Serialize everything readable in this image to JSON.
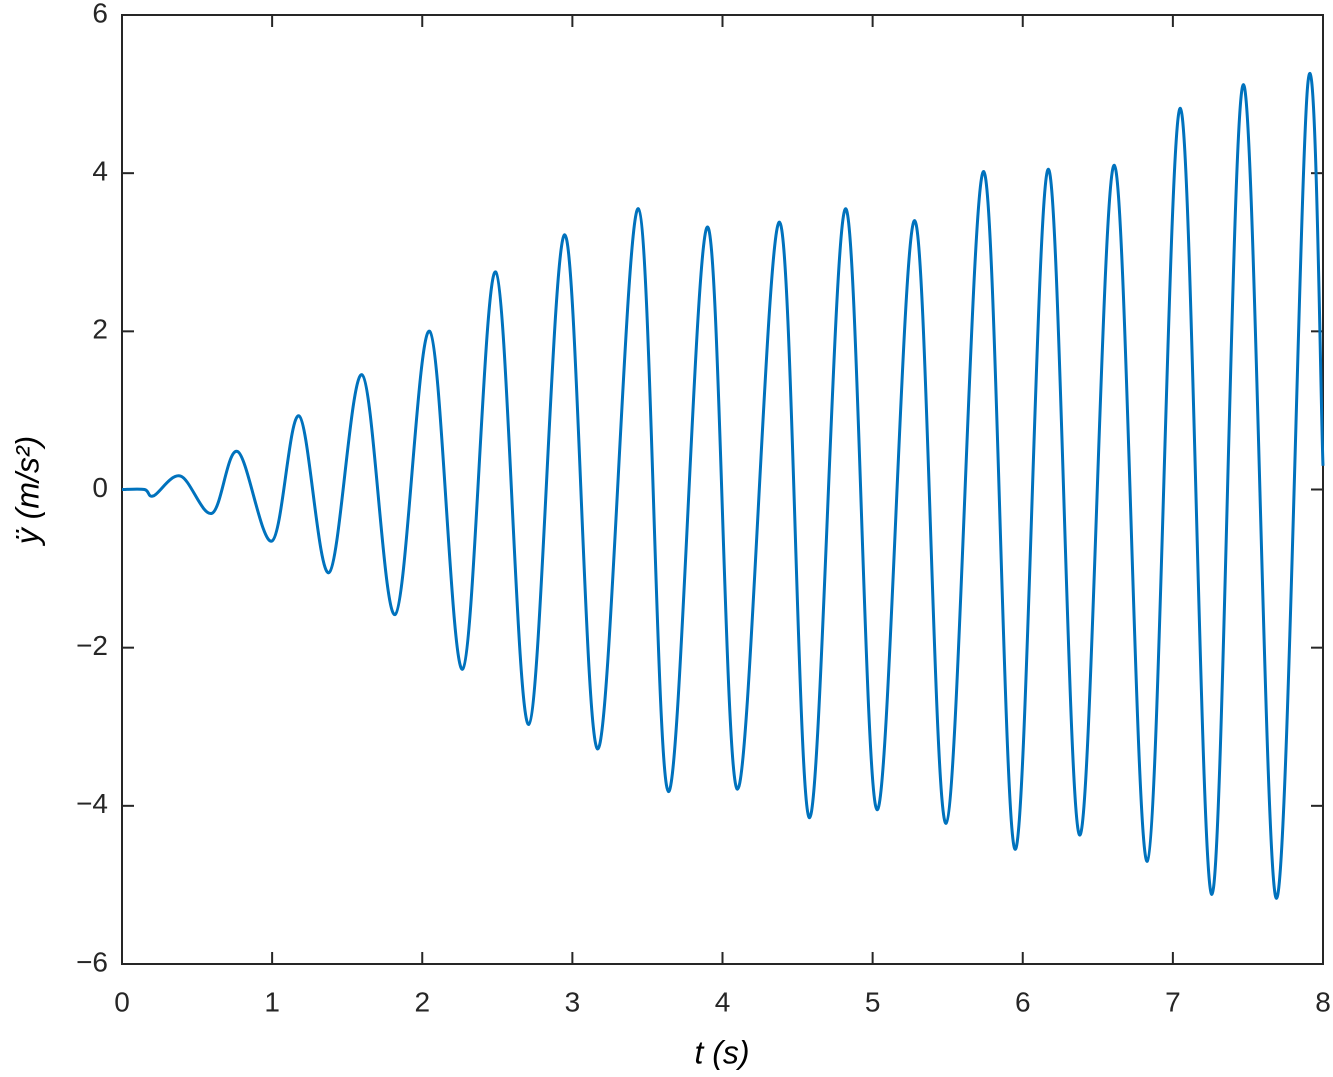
{
  "chart_data": {
    "type": "line",
    "xlabel": "t (s)",
    "ylabel": "ÿ (m/s²)",
    "xlim": [
      0,
      8
    ],
    "ylim": [
      -6,
      6
    ],
    "xticks": [
      0,
      1,
      2,
      3,
      4,
      5,
      6,
      7,
      8
    ],
    "yticks": [
      {
        "value": -6,
        "label": "−6"
      },
      {
        "value": -4,
        "label": "−4"
      },
      {
        "value": -2,
        "label": "−2"
      },
      0,
      2,
      4,
      6
    ],
    "x": [
      0,
      0.15,
      0.21,
      0.39,
      0.6,
      0.77,
      1.0,
      1.18,
      1.38,
      1.6,
      1.82,
      2.05,
      2.27,
      2.49,
      2.71,
      2.95,
      3.17,
      3.44,
      3.64,
      3.9,
      4.1,
      4.38,
      4.58,
      4.82,
      5.03,
      5.28,
      5.49,
      5.74,
      5.95,
      6.17,
      6.38,
      6.61,
      6.83,
      7.05,
      7.26,
      7.47,
      7.69,
      7.9,
      8.0
    ],
    "series": [
      {
        "color": "#0072bd",
        "values": [
          0,
          0,
          -0.08,
          0.17,
          -0.3,
          0.48,
          -0.65,
          0.93,
          -1.05,
          1.45,
          -1.58,
          2.0,
          -2.27,
          2.75,
          -2.97,
          3.22,
          -3.28,
          3.55,
          -3.82,
          3.32,
          -3.79,
          3.38,
          -4.15,
          3.55,
          -4.05,
          3.4,
          -4.22,
          4.02,
          -4.55,
          4.05,
          -4.37,
          4.1,
          -4.7,
          4.82,
          -5.12,
          5.12,
          -5.17,
          5.15,
          0.3
        ]
      }
    ],
    "grid": false
  }
}
